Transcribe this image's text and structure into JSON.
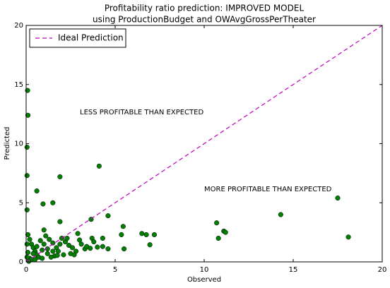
{
  "chart_data": {
    "type": "scatter",
    "title": [
      "Profitability ratio prediction: IMPROVED MODEL",
      "using ProductionBudget and OWAvgGrossPerTheater"
    ],
    "x_label": "Observed",
    "y_label": "Predicted",
    "xlim": [
      0,
      20
    ],
    "ylim": [
      0,
      20
    ],
    "xticks": [
      0,
      5,
      10,
      15,
      20
    ],
    "yticks": [
      0,
      5,
      10,
      15,
      20
    ],
    "legend": "upper left",
    "annotations": [
      "LESS PROFITABLE THAN EXPECTED",
      "MORE PROFITABLE THAN EXPECTED"
    ],
    "series": [
      {
        "type": "scatter",
        "color": "#007f00",
        "x": [
          0.08,
          0.1,
          0.05,
          0.05,
          0.05,
          0.6,
          0.95,
          1.5,
          1.9,
          4.1,
          3.65,
          4.6,
          1.9,
          17.5,
          14.3,
          18.1,
          10.7,
          10.8,
          11.1,
          11.2,
          6.5,
          6.75,
          7.2,
          6.95,
          5.45,
          5.35,
          5.5,
          4.3,
          4.3,
          4.6,
          3.7,
          3.6,
          4.0,
          2.9,
          3.0,
          3.1,
          3.3,
          0.1,
          0.2,
          0.3,
          0.4,
          0.5,
          0.6,
          0.7,
          0.2,
          0.1,
          0.3,
          0.8,
          1.0,
          1.1,
          1.3,
          1.5,
          1.7,
          1.8,
          2.0,
          2.2,
          2.4,
          2.6,
          2.8,
          2.5,
          2.1,
          1.6,
          1.2,
          0.9,
          1.4,
          0.5,
          0.15,
          0.05,
          0.05,
          0.9,
          1.9,
          2.3,
          3.4,
          3.8,
          0.6,
          1.0,
          1.2,
          0.4,
          2.7,
          1.5,
          1.75
        ],
        "values": [
          14.5,
          12.4,
          9.7,
          7.3,
          4.4,
          6.0,
          4.9,
          5.0,
          7.2,
          8.1,
          3.6,
          3.9,
          3.4,
          5.4,
          4.0,
          2.1,
          3.3,
          2.0,
          2.6,
          2.5,
          2.4,
          2.3,
          2.3,
          1.45,
          3.0,
          2.3,
          1.1,
          2.0,
          1.3,
          1.1,
          2.0,
          1.15,
          1.25,
          2.4,
          1.85,
          1.5,
          1.1,
          2.3,
          1.9,
          1.5,
          1.2,
          0.9,
          0.6,
          0.4,
          0.3,
          0.8,
          0.2,
          1.8,
          2.7,
          2.2,
          1.9,
          1.6,
          1.2,
          0.9,
          2.0,
          1.7,
          1.4,
          1.2,
          0.9,
          0.7,
          0.6,
          0.5,
          0.7,
          1.0,
          0.4,
          0.2,
          0.05,
          1.5,
          0.4,
          0.3,
          1.5,
          2.0,
          1.3,
          1.7,
          1.3,
          1.5,
          1.1,
          0.7,
          0.6,
          0.9,
          0.55
        ]
      },
      {
        "type": "line",
        "name": "Ideal Prediction",
        "color": "#bf00bf",
        "dashed": true,
        "x": [
          0,
          20
        ],
        "values": [
          0,
          20
        ]
      }
    ]
  }
}
